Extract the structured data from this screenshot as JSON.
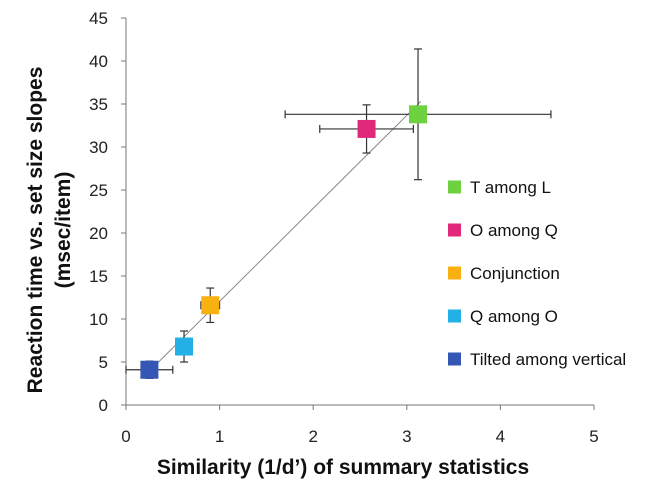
{
  "chart_data": {
    "type": "scatter",
    "title": "",
    "xlabel": "Similarity (1/d’) of summary statistics",
    "ylabel_line1": "Reaction time vs. set size slopes",
    "ylabel_line2": "(msec/item)",
    "xlim": [
      0,
      5
    ],
    "ylim": [
      0,
      45
    ],
    "x_ticks": [
      "0",
      "1",
      "2",
      "3",
      "4",
      "5"
    ],
    "y_ticks": [
      "0",
      "5",
      "10",
      "15",
      "20",
      "25",
      "30",
      "35",
      "40",
      "45"
    ],
    "x_tick_values": [
      0,
      1,
      2,
      3,
      4,
      5
    ],
    "y_tick_values": [
      0,
      5,
      10,
      15,
      20,
      25,
      30,
      35,
      40,
      45
    ],
    "grid": false,
    "legend_position": "right",
    "trendline": {
      "x": [
        0.2,
        3.15
      ],
      "y": [
        3.4,
        35.3
      ]
    },
    "series": [
      {
        "name": "T among L",
        "color": "#6ed13f",
        "x": 3.12,
        "y": 33.8,
        "x_err": 1.42,
        "y_err": 7.6
      },
      {
        "name": "O among Q",
        "color": "#e0297a",
        "x": 2.57,
        "y": 32.1,
        "x_err": 0.5,
        "y_err": 2.8
      },
      {
        "name": "Conjunction",
        "color": "#f9b112",
        "x": 0.9,
        "y": 11.6,
        "x_err": 0.1,
        "y_err": 2.0
      },
      {
        "name": "Q among O",
        "color": "#23b0e6",
        "x": 0.62,
        "y": 6.8,
        "x_err": 0.04,
        "y_err": 1.8
      },
      {
        "name": "Tilted among vertical",
        "color": "#3457b5",
        "x": 0.25,
        "y": 4.1,
        "x_err": 0.25,
        "y_err": 1.0
      }
    ],
    "legend_order": [
      0,
      1,
      2,
      3,
      4
    ]
  }
}
